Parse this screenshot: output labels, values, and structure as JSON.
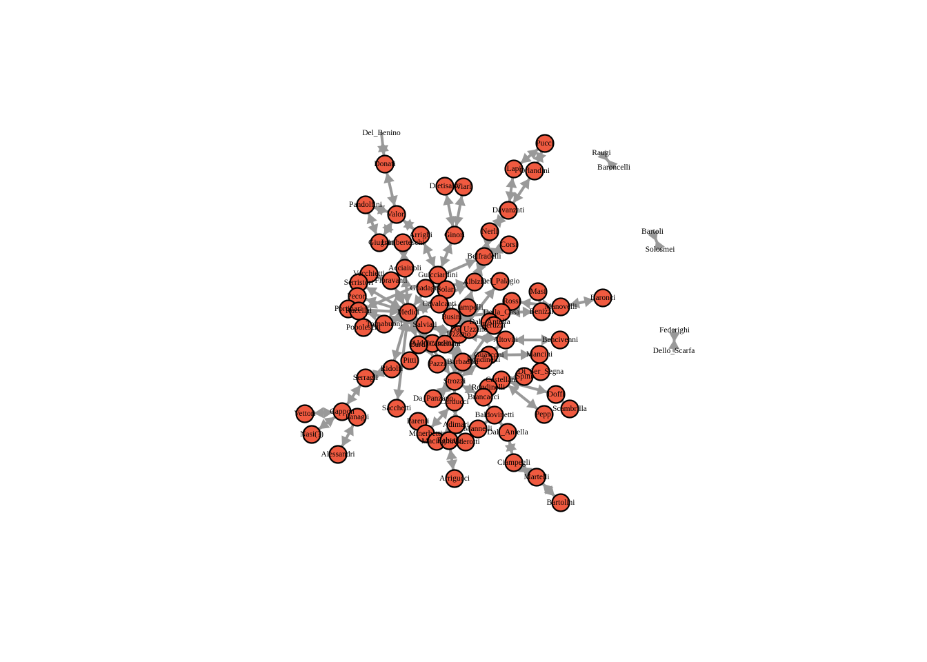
{
  "graph": {
    "node_color": "#f05a40",
    "node_stroke": "#000000",
    "edge_color": "#999999",
    "nodes": [
      {
        "id": "Del_Benino",
        "circle": false
      },
      {
        "id": "Donati",
        "circle": true
      },
      {
        "id": "Pucci",
        "circle": true
      },
      {
        "id": "Raugi",
        "circle": false
      },
      {
        "id": "Baroncelli",
        "circle": false
      },
      {
        "id": "Lapi",
        "circle": true
      },
      {
        "id": "Orlandini",
        "circle": true
      },
      {
        "id": "Dietisalvi",
        "circle": true
      },
      {
        "id": "Viari",
        "circle": true
      },
      {
        "id": "Pandolfini",
        "circle": true
      },
      {
        "id": "Valori",
        "circle": true
      },
      {
        "id": "Davanzati",
        "circle": true
      },
      {
        "id": "Bartoli",
        "circle": false
      },
      {
        "id": "Solosmei",
        "circle": false
      },
      {
        "id": "Nerli",
        "circle": true
      },
      {
        "id": "Arrighi",
        "circle": true
      },
      {
        "id": "Ginori",
        "circle": true
      },
      {
        "id": "Giugni",
        "circle": true
      },
      {
        "id": "Lamberteschi",
        "circle": true
      },
      {
        "id": "Corsi",
        "circle": true
      },
      {
        "id": "Belfradelli",
        "circle": true
      },
      {
        "id": "Acciaiuoli",
        "circle": true
      },
      {
        "id": "Vecchietti",
        "circle": true
      },
      {
        "id": "Guicciardini",
        "circle": true
      },
      {
        "id": "Serristori",
        "circle": true
      },
      {
        "id": "Fioravanti",
        "circle": true
      },
      {
        "id": "Albizzi",
        "circle": true
      },
      {
        "id": "Del_Palagio",
        "circle": true
      },
      {
        "id": "Guadagni",
        "circle": true
      },
      {
        "id": "Solari",
        "circle": true
      },
      {
        "id": "Masi",
        "circle": true
      },
      {
        "id": "Pecori",
        "circle": true
      },
      {
        "id": "Baronci",
        "circle": true
      },
      {
        "id": "Rossi",
        "circle": true
      },
      {
        "id": "Cavalcanti",
        "circle": true
      },
      {
        "id": "Portinari",
        "circle": true
      },
      {
        "id": "Manovelli",
        "circle": true
      },
      {
        "id": "Rucellai",
        "circle": true
      },
      {
        "id": "Ciampelli",
        "circle": true
      },
      {
        "id": "Medici",
        "circle": true
      },
      {
        "id": "Busini",
        "circle": true
      },
      {
        "id": "Della_Casa",
        "circle": true
      },
      {
        "id": "Benizzi",
        "circle": true
      },
      {
        "id": "Dall_Antella_2",
        "circle": true
      },
      {
        "id": "Tornabuoni",
        "circle": true
      },
      {
        "id": "Salviati",
        "circle": true
      },
      {
        "id": "Peruzzi",
        "circle": true
      },
      {
        "id": "Popoleschi",
        "circle": true
      },
      {
        "id": "Aldobrandini",
        "circle": true
      },
      {
        "id": "Uzzano",
        "circle": true
      },
      {
        "id": "Altoviti",
        "circle": true
      },
      {
        "id": "Bencivenni",
        "circle": true
      },
      {
        "id": "Bardi",
        "circle": true
      },
      {
        "id": "Castellani_2",
        "circle": true
      },
      {
        "id": "Mancini",
        "circle": true
      },
      {
        "id": "Guasconi",
        "circle": true
      },
      {
        "id": "Pitti",
        "circle": true
      },
      {
        "id": "Pazzi",
        "circle": true
      },
      {
        "id": "Barbadori",
        "circle": true
      },
      {
        "id": "Rondinelli",
        "circle": true
      },
      {
        "id": "Ridolfi",
        "circle": true
      },
      {
        "id": "Da_Uzzano",
        "circle": true
      },
      {
        "id": "Di_Ser_Segna",
        "circle": true
      },
      {
        "id": "Serragli",
        "circle": true
      },
      {
        "id": "Strozzi",
        "circle": true
      },
      {
        "id": "Castellani",
        "circle": true
      },
      {
        "id": "Spini",
        "circle": true
      },
      {
        "id": "Rondinelli_2",
        "circle": true
      },
      {
        "id": "Doffi",
        "circle": true
      },
      {
        "id": "Da_Panzano",
        "circle": true
      },
      {
        "id": "Brancacci",
        "circle": true
      },
      {
        "id": "Carducci",
        "circle": true
      },
      {
        "id": "Federighi",
        "circle": false
      },
      {
        "id": "Sacchetti",
        "circle": true
      },
      {
        "id": "Scambrilla",
        "circle": true
      },
      {
        "id": "Vettori",
        "circle": true
      },
      {
        "id": "Cappon",
        "circle": true
      },
      {
        "id": "Panagli",
        "circle": true
      },
      {
        "id": "Peppi",
        "circle": true
      },
      {
        "id": "Parenti",
        "circle": true
      },
      {
        "id": "Baldovinetti",
        "circle": true
      },
      {
        "id": "Dello_Scarfa",
        "circle": false
      },
      {
        "id": "Adimari",
        "circle": true
      },
      {
        "id": "Nasi",
        "circle": true
      },
      {
        "id": "Minerbetti",
        "circle": true
      },
      {
        "id": "Mannelli",
        "circle": true
      },
      {
        "id": "Dall_Antella",
        "circle": true
      },
      {
        "id": "Macinghi",
        "circle": true
      },
      {
        "id": "Rabatta",
        "circle": true
      },
      {
        "id": "Alderotti",
        "circle": true
      },
      {
        "id": "Alessandri",
        "circle": true
      },
      {
        "id": "Ciampegli",
        "circle": true
      },
      {
        "id": "Martelli",
        "circle": true
      },
      {
        "id": "Arrigucci",
        "circle": true
      },
      {
        "id": "Bartolini",
        "circle": true
      }
    ],
    "labels": {
      "Del_Benino": "Del_Benino",
      "Donati": "Donati",
      "Pucci": "Pucci",
      "Raugi": "Raugi",
      "Baroncelli": "Baroncelli",
      "Lapi": "Lapi",
      "Orlandini": "Orlandini",
      "Dietisalvi": "Dietisalvi",
      "Viari": "Viari",
      "Pandolfini": "Pandolfini",
      "Valori": "Valori",
      "Davanzati": "Davanzati",
      "Bartoli": "Bartoli",
      "Solosmei": "Solosmei",
      "Nerli": "Nerli",
      "Arrighi": "Arrighi",
      "Ginori": "Ginori",
      "Giugni": "Giugni",
      "Lamberteschi": "Lamberteschi",
      "Corsi": "Corsi",
      "Belfradelli": "Belfradelli",
      "Acciaiuoli": "Acciaiuoli",
      "Vecchietti": "Vecchietti",
      "Guicciardini": "Guicciardini",
      "Serristori": "Serristori",
      "Fioravanti": "Fioravanti",
      "Albizzi": "Albizzi",
      "Del_Palagio": "Del_Palagio",
      "Guadagni": "Guadagni",
      "Solari": "Solari",
      "Masi": "Masi",
      "Pecori": "Pecori",
      "Baronci": "Baronci",
      "Rossi": "Rossi",
      "Cavalcanti": "Cavalcanti",
      "Portinari": "Portinari",
      "Manovelli": "Manovelli",
      "Rucellai": "Rucellai",
      "Ciampelli": "Ciampelli",
      "Medici": "Medici",
      "Busini": "Busini",
      "Della_Casa": "Della_Casa",
      "Benizzi": "Benizzi",
      "Dall_Antella_2": "Dall_Antella",
      "Tornabuoni": "Tornabuoni",
      "Salviati": "Salviati",
      "Peruzzi": "Peruzzi",
      "Popoleschi": "Popoleschi",
      "Aldobrandini": "Aldobrandini",
      "Uzzano": "Uzzano",
      "Altoviti": "Altoviti",
      "Bencivenni": "Bencivenni",
      "Bardi": "Bardi",
      "Castellani_2": "Castellani",
      "Mancini": "Mancini",
      "Guasconi": "Guasconi",
      "Pitti": "Pitti",
      "Pazzi": "Pazzi",
      "Barbadori": "Barbadori",
      "Rondinelli": "Rondinelli",
      "Ridolfi": "Ridolfi",
      "Da_Uzzano": "Da_Uzzano",
      "Di_Ser_Segna": "Di_Ser_Segna",
      "Serragli": "Serragli",
      "Strozzi": "Strozzi",
      "Castellani": "Castellani",
      "Spini": "Spini",
      "Rondinelli_2": "Rondinelli",
      "Doffi": "Doffi",
      "Da_Panzano": "Da_Panzano",
      "Brancacci": "Brancacci",
      "Carducci": "Carducci",
      "Federighi": "Federighi",
      "Sacchetti": "Sacchetti",
      "Scambrilla": "Scambrilla",
      "Vettori": "Vettori",
      "Cappon": "Cappon",
      "Panagli": "Panagli",
      "Peppi": "Peppi",
      "Parenti": "Parenti",
      "Baldovinetti": "Baldovinetti",
      "Dello_Scarfa": "Dello_Scarfa",
      "Adimari": "Adimari",
      "Nasi": "Nasi(?)",
      "Minerbetti": "Minerbetti",
      "Mannelli": "Mannelli",
      "Dall_Antella": "Dall_Antella",
      "Macinghi": "Macinghi",
      "Rabatta": "Rabatta",
      "Alderotti": "Alderotti",
      "Alessandri": "Alessandri",
      "Ciampegli": "Ciampegli",
      "Martelli": "Martelli",
      "Arrigucci": "Arrigucci",
      "Bartolini": "Bartolini"
    },
    "edges": [
      [
        "Del_Benino",
        "Donati"
      ],
      [
        "Donati",
        "Valori"
      ],
      [
        "Pandolfini",
        "Valori"
      ],
      [
        "Valori",
        "Giugni"
      ],
      [
        "Valori",
        "Arrighi"
      ],
      [
        "Pandolfini",
        "Giugni"
      ],
      [
        "Giugni",
        "Lamberteschi"
      ],
      [
        "Arrighi",
        "Guicciardini"
      ],
      [
        "Lamberteschi",
        "Acciaiuoli"
      ],
      [
        "Pucci",
        "Lapi"
      ],
      [
        "Pucci",
        "Orlandini"
      ],
      [
        "Lapi",
        "Davanzati"
      ],
      [
        "Orlandini",
        "Davanzati"
      ],
      [
        "Davanzati",
        "Nerli"
      ],
      [
        "Nerli",
        "Belfradelli"
      ],
      [
        "Corsi",
        "Belfradelli"
      ],
      [
        "Dietisalvi",
        "Ginori"
      ],
      [
        "Viari",
        "Ginori"
      ],
      [
        "Ginori",
        "Guicciardini"
      ],
      [
        "Belfradelli",
        "Albizzi"
      ],
      [
        "Belfradelli",
        "Rucellai"
      ],
      [
        "Raugi",
        "Baroncelli"
      ],
      [
        "Bartoli",
        "Solosmei"
      ],
      [
        "Federighi",
        "Dello_Scarfa"
      ],
      [
        "Acciaiuoli",
        "Medici"
      ],
      [
        "Vecchietti",
        "Fioravanti"
      ],
      [
        "Serristori",
        "Medici"
      ],
      [
        "Pecori",
        "Medici"
      ],
      [
        "Portinari",
        "Medici"
      ],
      [
        "Popoleschi",
        "Tornabuoni"
      ],
      [
        "Fioravanti",
        "Medici"
      ],
      [
        "Guadagni",
        "Albizzi"
      ],
      [
        "Solari",
        "Cavalcanti"
      ],
      [
        "Albizzi",
        "Medici"
      ],
      [
        "Del_Palagio",
        "Uzzano"
      ],
      [
        "Masi",
        "Benizzi"
      ],
      [
        "Baronci",
        "Manovelli"
      ],
      [
        "Manovelli",
        "Rossi"
      ],
      [
        "Rossi",
        "Peruzzi"
      ],
      [
        "Della_Casa",
        "Busini"
      ],
      [
        "Medici",
        "Tornabuoni"
      ],
      [
        "Medici",
        "Salviati"
      ],
      [
        "Medici",
        "Cavalcanti"
      ],
      [
        "Medici",
        "Ridolfi"
      ],
      [
        "Medici",
        "Aldobrandini"
      ],
      [
        "Medici",
        "Pazzi"
      ],
      [
        "Busini",
        "Strozzi"
      ],
      [
        "Peruzzi",
        "Strozzi"
      ],
      [
        "Barbadori",
        "Guasconi"
      ],
      [
        "Guasconi",
        "Altoviti"
      ],
      [
        "Altoviti",
        "Bencivenni"
      ],
      [
        "Guasconi",
        "Mancini"
      ],
      [
        "Castellani",
        "Spini"
      ],
      [
        "Spini",
        "Di_Ser_Segna"
      ],
      [
        "Castellani",
        "Doffi"
      ],
      [
        "Castellani",
        "Peppi"
      ],
      [
        "Doffi",
        "Scambrilla"
      ],
      [
        "Strozzi",
        "Barbadori"
      ],
      [
        "Strozzi",
        "Carducci"
      ],
      [
        "Strozzi",
        "Rondinelli"
      ],
      [
        "Pitti",
        "Ridolfi"
      ],
      [
        "Ridolfi",
        "Serragli"
      ],
      [
        "Serragli",
        "Cappon"
      ],
      [
        "Cappon",
        "Vettori"
      ],
      [
        "Cappon",
        "Nasi"
      ],
      [
        "Cappon",
        "Panagli"
      ],
      [
        "Panagli",
        "Alessandri"
      ],
      [
        "Sacchetti",
        "Medici"
      ],
      [
        "Da_Panzano",
        "Strozzi"
      ],
      [
        "Brancacci",
        "Strozzi"
      ],
      [
        "Parenti",
        "Minerbetti"
      ],
      [
        "Minerbetti",
        "Carducci"
      ],
      [
        "Adimari",
        "Carducci"
      ],
      [
        "Macinghi",
        "Adimari"
      ],
      [
        "Rabatta",
        "Adimari"
      ],
      [
        "Alderotti",
        "Adimari"
      ],
      [
        "Arrigucci",
        "Rabatta"
      ],
      [
        "Baldovinetti",
        "Brancacci"
      ],
      [
        "Mannelli",
        "Baldovinetti"
      ],
      [
        "Dall_Antella",
        "Ciampegli"
      ],
      [
        "Ciampegli",
        "Martelli"
      ],
      [
        "Martelli",
        "Bartolini"
      ],
      [
        "Dall_Antella",
        "Baldovinetti"
      ],
      [
        "Guicciardini",
        "Medici"
      ],
      [
        "Uzzano",
        "Bardi"
      ],
      [
        "Uzzano",
        "Strozzi"
      ],
      [
        "Bardi",
        "Medici"
      ],
      [
        "Pazzi",
        "Barbadori"
      ],
      [
        "Rucellai",
        "Uzzano"
      ],
      [
        "Ciampelli",
        "Uzzano"
      ],
      [
        "Cavalcanti",
        "Uzzano"
      ],
      [
        "Salviati",
        "Uzzano"
      ],
      [
        "Dall_Antella_2",
        "Uzzano"
      ],
      [
        "Da_Uzzano",
        "Uzzano"
      ],
      [
        "Castellani_2",
        "Barbadori"
      ],
      [
        "Rondinelli_2",
        "Castellani"
      ],
      [
        "Benizzi",
        "Della_Casa"
      ],
      [
        "Altoviti",
        "Uzzano"
      ],
      [
        "Medici",
        "Strozzi"
      ],
      [
        "Albizzi",
        "Uzzano"
      ],
      [
        "Guicciardini",
        "Uzzano"
      ]
    ]
  }
}
